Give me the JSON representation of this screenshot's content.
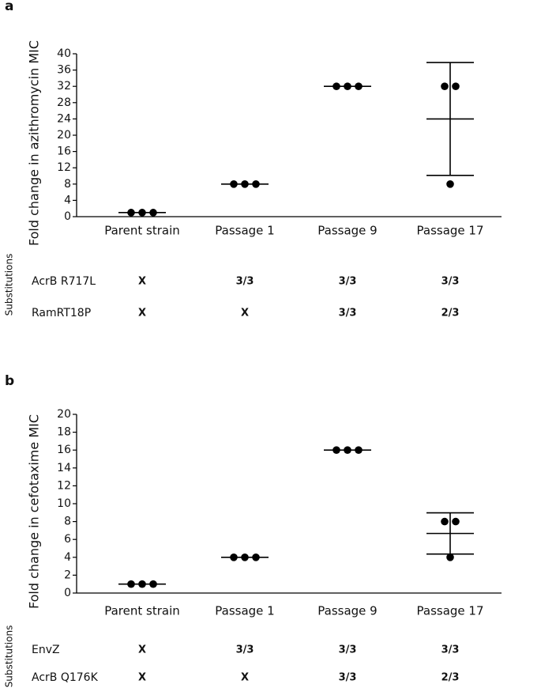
{
  "chart_data": [
    {
      "type": "dotplot",
      "panel_label": "a",
      "y_label": "Fold change in azithromycin MIC",
      "categories": [
        "Parent strain",
        "Passage 1",
        "Passage 9",
        "Passage 17"
      ],
      "points": [
        [
          1,
          1,
          1
        ],
        [
          8,
          8,
          8
        ],
        [
          32,
          32,
          32
        ],
        [
          32,
          32,
          8
        ]
      ],
      "mean": [
        1,
        8,
        32,
        24
      ],
      "error": [
        0,
        0,
        0,
        13.86
      ],
      "color": "#000000",
      "ylim": [
        0,
        40
      ],
      "yticks": [
        0,
        4,
        8,
        12,
        16,
        20,
        24,
        28,
        32,
        36,
        40
      ],
      "table": {
        "label": "Substitutions",
        "rows": [
          {
            "name": "AcrB R717L",
            "cells": [
              "X",
              "3/3",
              "3/3",
              "3/3"
            ]
          },
          {
            "name": "RamRT18P",
            "cells": [
              "X",
              "X",
              "3/3",
              "2/3"
            ]
          }
        ]
      }
    },
    {
      "type": "dotplot",
      "panel_label": "b",
      "y_label": "Fold change in cefotaxime MIC",
      "categories": [
        "Parent strain",
        "Passage 1",
        "Passage 9",
        "Passage 17"
      ],
      "points": [
        [
          1,
          1,
          1
        ],
        [
          4,
          4,
          4
        ],
        [
          16,
          16,
          16
        ],
        [
          8,
          8,
          4
        ]
      ],
      "mean": [
        1,
        4,
        16,
        6.67
      ],
      "error": [
        0,
        0,
        0,
        2.31
      ],
      "color": "#000000",
      "ylim": [
        0,
        20
      ],
      "yticks": [
        0,
        2,
        4,
        6,
        8,
        10,
        12,
        14,
        16,
        18,
        20
      ],
      "table": {
        "label": "Substitutions",
        "rows": [
          {
            "name": "EnvZ",
            "cells": [
              "X",
              "3/3",
              "3/3",
              "3/3"
            ]
          },
          {
            "name": "AcrB Q176K",
            "cells": [
              "X",
              "X",
              "3/3",
              "2/3"
            ]
          }
        ]
      }
    }
  ]
}
